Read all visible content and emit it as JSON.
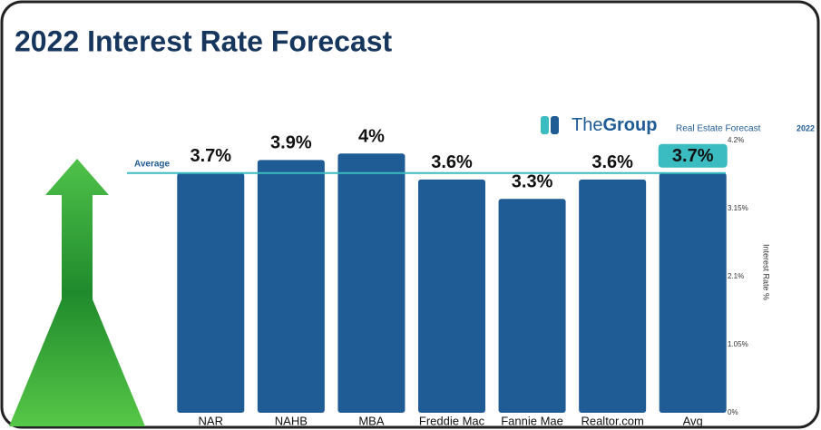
{
  "chart_data": {
    "type": "bar",
    "title": "2022 Interest Rate Forecast",
    "brand_light": "The",
    "brand_bold": "Group",
    "brand_tagline": "Real Estate Forecast",
    "brand_year": "2022",
    "y_axis_label": "Interest Rate %",
    "categories": [
      "NAR",
      "NAHB",
      "MBA",
      "Freddie Mac",
      "Fannie Mae",
      "Realtor.com",
      "Avg"
    ],
    "values": [
      3.7,
      3.9,
      4,
      3.6,
      3.3,
      3.6,
      3.7
    ],
    "value_labels": [
      "3.7%",
      "3.9%",
      "4%",
      "3.6%",
      "3.3%",
      "3.6%",
      "3.7%"
    ],
    "color": "#1f5b95",
    "average_line": {
      "label": "Average",
      "value": 3.7,
      "color": "#3bbcc0"
    },
    "ylim": [
      0,
      4.2
    ],
    "yticks": [
      {
        "value": 0,
        "label": "0%"
      },
      {
        "value": 1.05,
        "label": "1.05%"
      },
      {
        "value": 2.1,
        "label": "2.1%"
      },
      {
        "value": 3.15,
        "label": "3.15%"
      },
      {
        "value": 4.2,
        "label": "4.2%"
      }
    ]
  }
}
